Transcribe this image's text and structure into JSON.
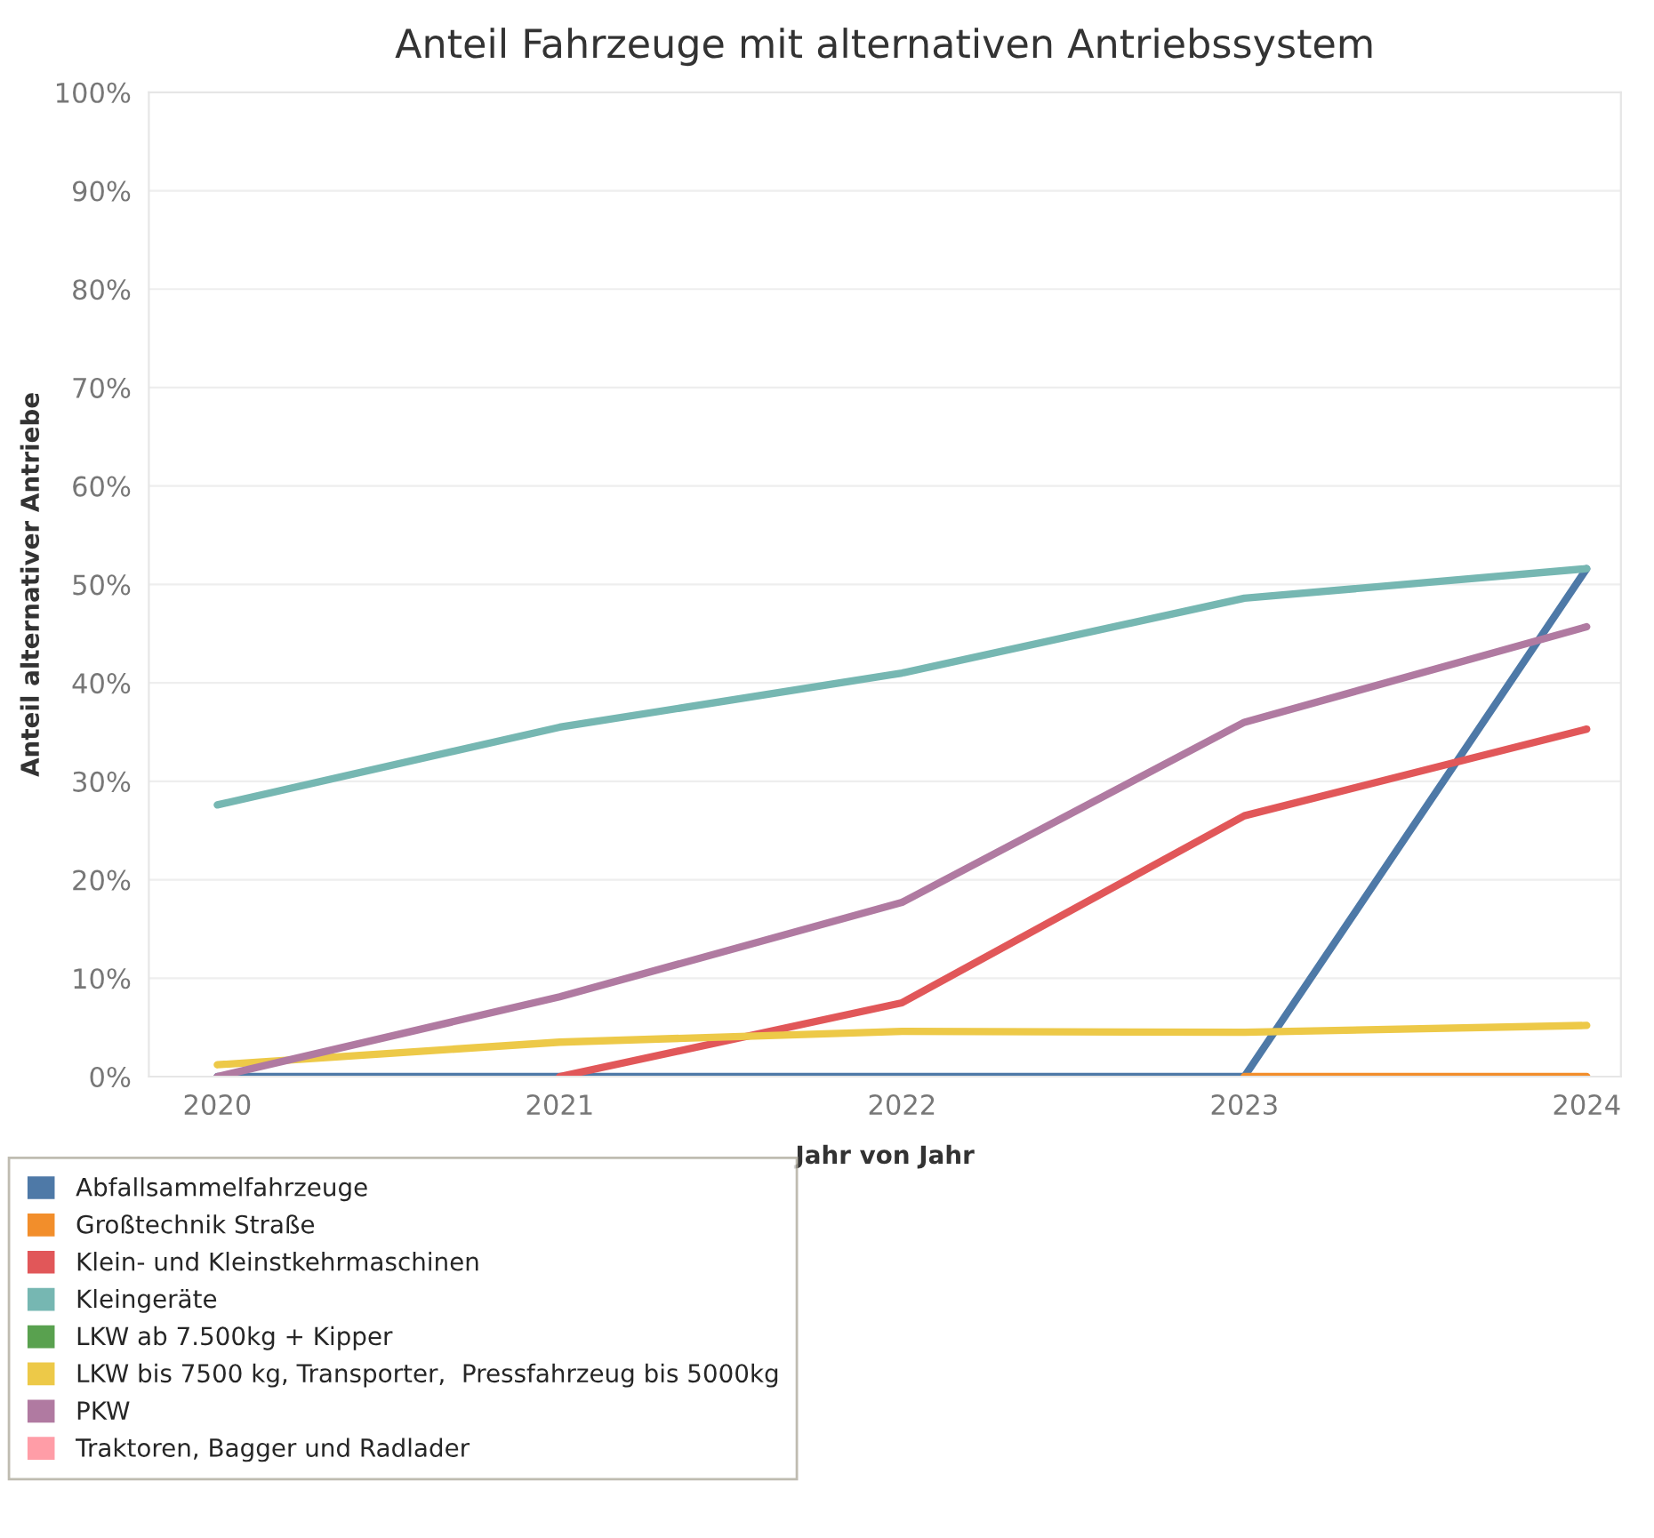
{
  "chart_data": {
    "type": "line",
    "title": "Anteil Fahrzeuge mit alternativen Antriebssystem",
    "xlabel": "Jahr von Jahr",
    "ylabel": "Anteil alternativer Antriebe",
    "x": [
      2020,
      2021,
      2022,
      2023,
      2024
    ],
    "series": [
      {
        "name": "Abfallsammelfahrzeuge",
        "color": "#4e79a7",
        "values": [
          0,
          0,
          0,
          0,
          51.6
        ]
      },
      {
        "name": "Großtechnik Straße",
        "color": "#f28e2b",
        "values": [
          null,
          null,
          null,
          0,
          0
        ]
      },
      {
        "name": "Klein- und Kleinstkehrmaschinen",
        "color": "#e15759",
        "values": [
          null,
          0,
          7.5,
          26.5,
          35.3
        ]
      },
      {
        "name": "Kleingeräte",
        "color": "#76b7b2",
        "values": [
          27.6,
          35.5,
          41.0,
          48.6,
          51.6
        ]
      },
      {
        "name": "LKW ab 7.500kg + Kipper",
        "color": "#59a14f",
        "values": [
          null,
          null,
          null,
          null,
          null
        ]
      },
      {
        "name": "LKW bis 7500 kg, Transporter,  Pressfahrzeug bis 5000kg",
        "color": "#edc948",
        "values": [
          1.2,
          3.5,
          4.6,
          4.5,
          5.2
        ]
      },
      {
        "name": "PKW",
        "color": "#b07aa1",
        "values": [
          0,
          8.1,
          17.7,
          36.0,
          45.7
        ]
      },
      {
        "name": "Traktoren, Bagger und Radlader",
        "color": "#ff9da7",
        "values": [
          null,
          null,
          null,
          null,
          null
        ]
      }
    ],
    "xlim": [
      2019.8,
      2024.1
    ],
    "xticks": [
      2020,
      2021,
      2022,
      2023,
      2024
    ],
    "ylim": [
      0,
      100
    ],
    "yticks": [
      {
        "value": 0,
        "label": "0%"
      },
      {
        "value": 10,
        "label": "10%"
      },
      {
        "value": 20,
        "label": "20%"
      },
      {
        "value": 30,
        "label": "30%"
      },
      {
        "value": 40,
        "label": "40%"
      },
      {
        "value": 50,
        "label": "50%"
      },
      {
        "value": 60,
        "label": "60%"
      },
      {
        "value": 70,
        "label": "70%"
      },
      {
        "value": 80,
        "label": "80%"
      },
      {
        "value": 90,
        "label": "90%"
      },
      {
        "value": 100,
        "label": "100%"
      }
    ],
    "grid": "y",
    "legend": "bottom",
    "line_style": "solid",
    "marker": "none"
  }
}
